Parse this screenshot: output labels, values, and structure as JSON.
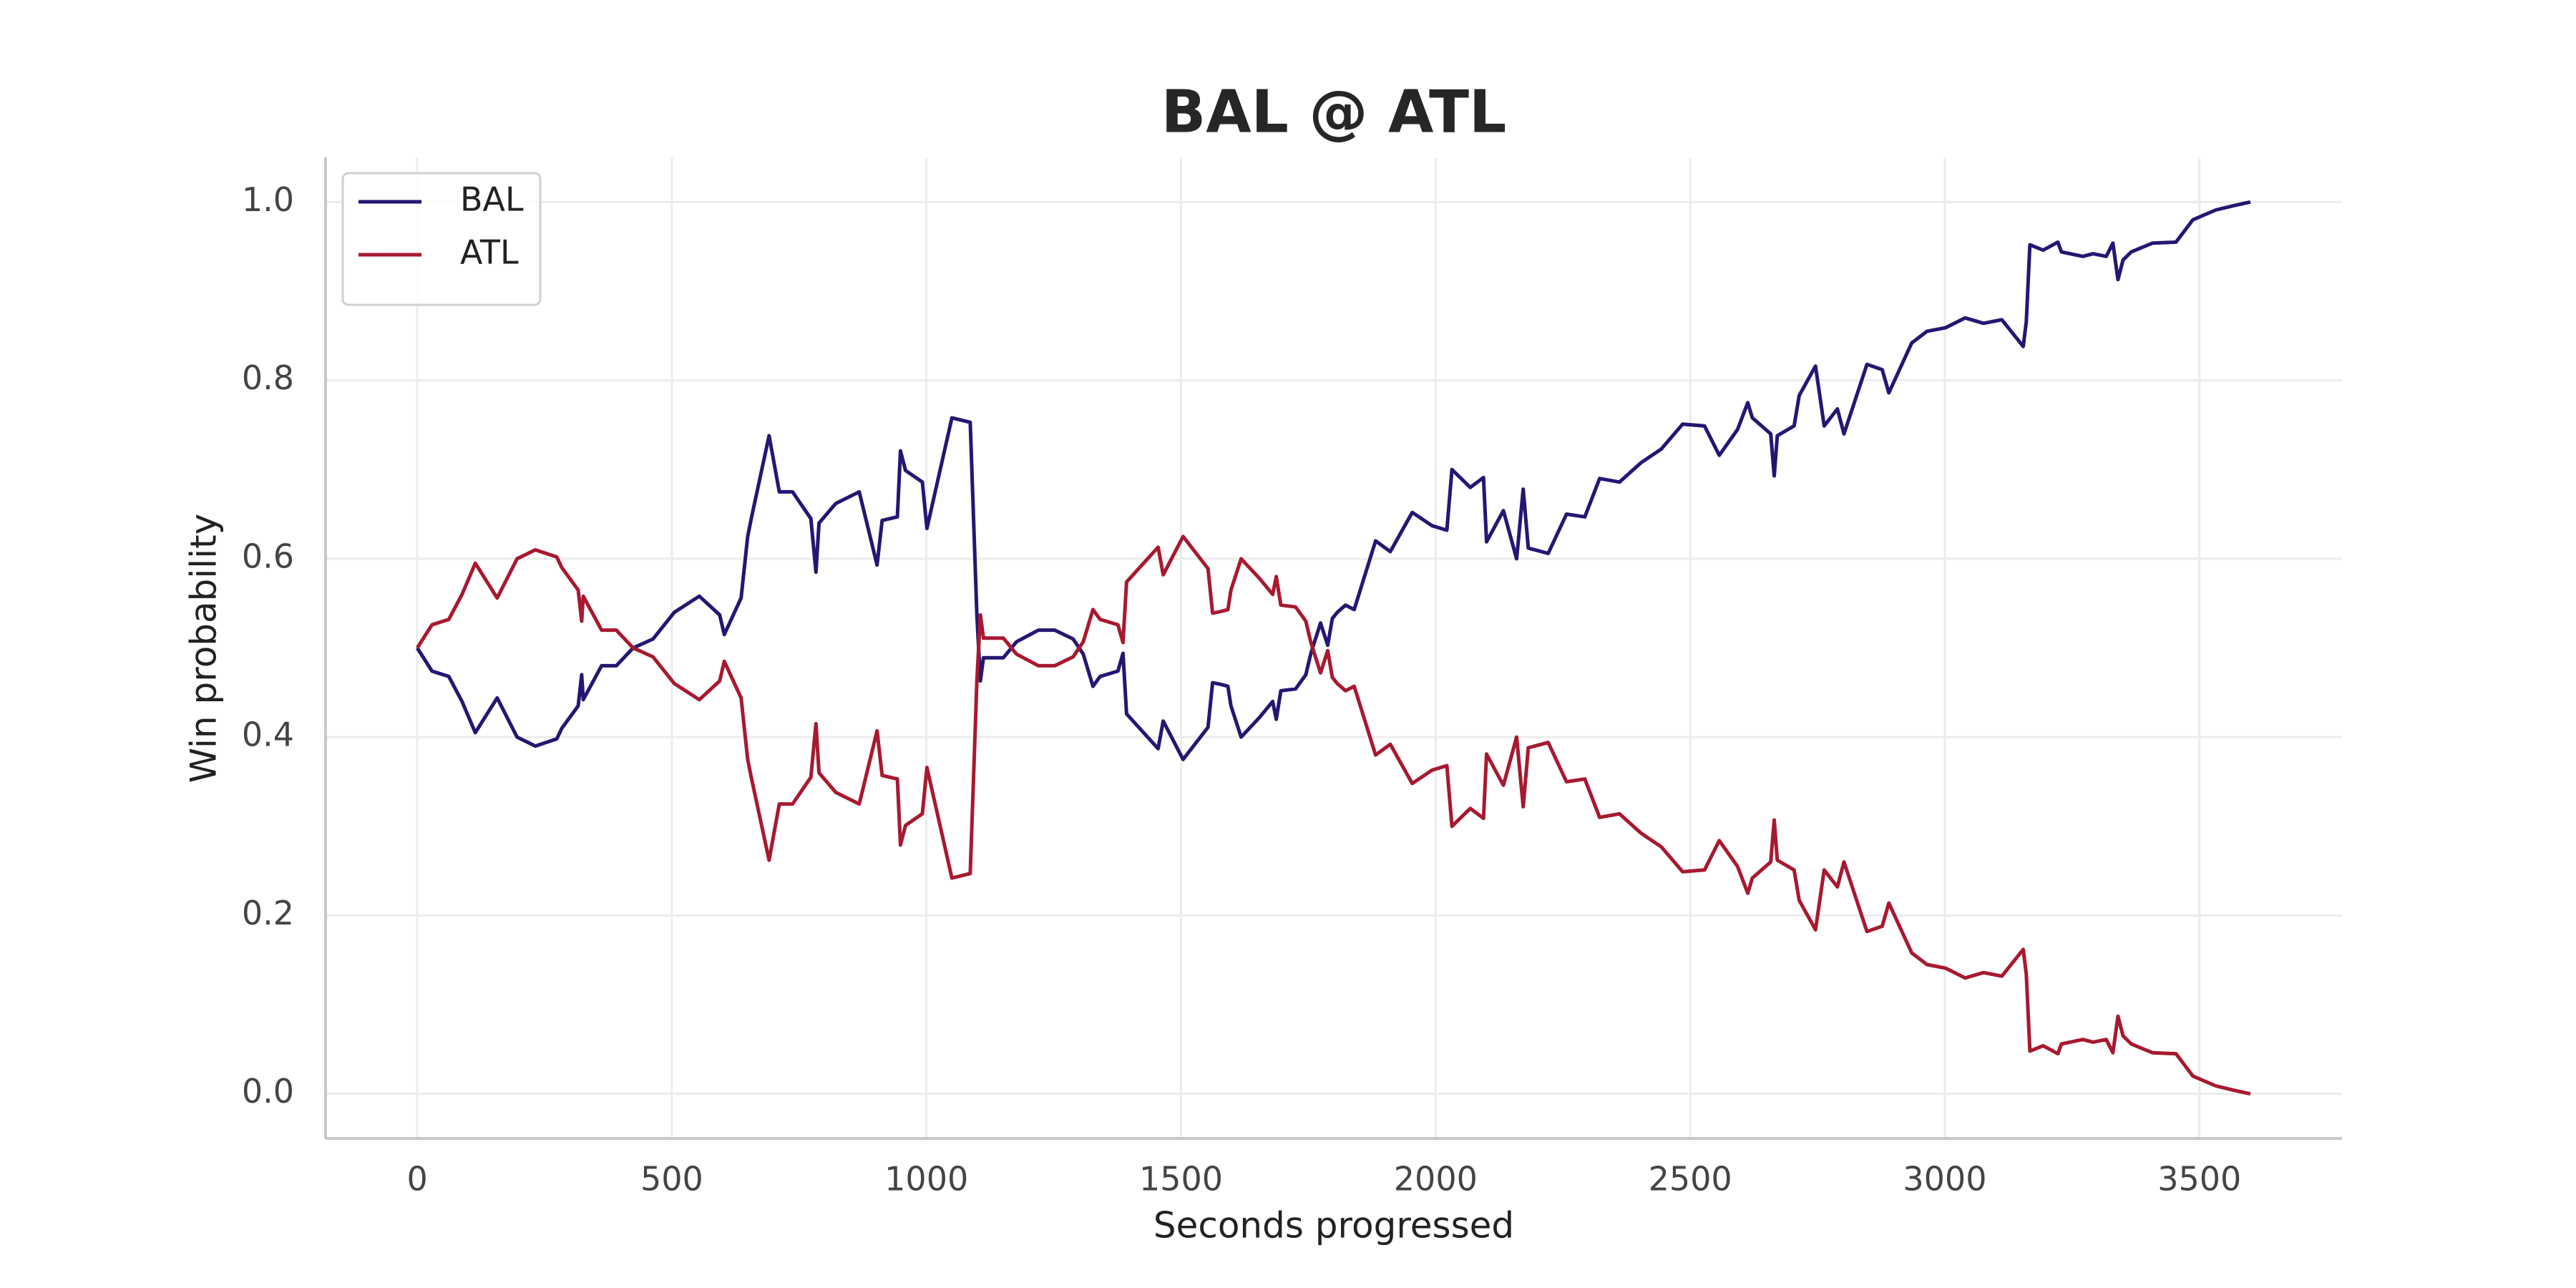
{
  "chart_data": {
    "type": "line",
    "title": "BAL @ ATL",
    "xlabel": "Seconds progressed",
    "ylabel": "Win probability",
    "x": [
      0,
      29,
      62,
      88,
      114,
      157,
      196,
      232,
      274,
      284,
      316,
      323,
      326,
      362,
      391,
      424,
      463,
      505,
      554,
      594,
      603,
      636,
      649,
      656,
      691,
      711,
      737,
      773,
      783,
      789,
      822,
      868,
      903,
      913,
      943,
      949,
      959,
      992,
      1001,
      1050,
      1086,
      1099,
      1106,
      1112,
      1151,
      1177,
      1220,
      1252,
      1288,
      1308,
      1327,
      1341,
      1376,
      1386,
      1393,
      1455,
      1465,
      1504,
      1553,
      1562,
      1579,
      1592,
      1598,
      1618,
      1654,
      1680,
      1687,
      1696,
      1725,
      1745,
      1755,
      1774,
      1788,
      1797,
      1807,
      1823,
      1840,
      1882,
      1911,
      1954,
      1993,
      2022,
      2032,
      2068,
      2094,
      2100,
      2133,
      2159,
      2172,
      2182,
      2221,
      2257,
      2293,
      2322,
      2361,
      2404,
      2443,
      2485,
      2528,
      2557,
      2593,
      2613,
      2622,
      2658,
      2665,
      2671,
      2704,
      2714,
      2746,
      2763,
      2789,
      2802,
      2847,
      2877,
      2890,
      2935,
      2965,
      3001,
      3040,
      3076,
      3112,
      3154,
      3160,
      3167,
      3193,
      3222,
      3229,
      3271,
      3291,
      3317,
      3330,
      3340,
      3350,
      3366,
      3408,
      3454,
      3487,
      3532,
      3568,
      3600
    ],
    "series": [
      {
        "name": "BAL",
        "color": "#241773",
        "values": [
          0.5,
          0.474,
          0.468,
          0.44,
          0.405,
          0.444,
          0.4,
          0.39,
          0.398,
          0.41,
          0.435,
          0.47,
          0.442,
          0.48,
          0.48,
          0.5,
          0.51,
          0.54,
          0.558,
          0.537,
          0.515,
          0.556,
          0.625,
          0.645,
          0.738,
          0.675,
          0.675,
          0.645,
          0.585,
          0.64,
          0.662,
          0.675,
          0.593,
          0.643,
          0.647,
          0.721,
          0.699,
          0.686,
          0.634,
          0.758,
          0.753,
          0.537,
          0.463,
          0.489,
          0.489,
          0.507,
          0.52,
          0.52,
          0.51,
          0.493,
          0.457,
          0.468,
          0.474,
          0.494,
          0.426,
          0.387,
          0.418,
          0.375,
          0.411,
          0.461,
          0.459,
          0.457,
          0.435,
          0.4,
          0.422,
          0.44,
          0.42,
          0.452,
          0.454,
          0.47,
          0.494,
          0.528,
          0.503,
          0.533,
          0.54,
          0.548,
          0.543,
          0.62,
          0.608,
          0.652,
          0.637,
          0.632,
          0.7,
          0.68,
          0.691,
          0.619,
          0.654,
          0.6,
          0.678,
          0.612,
          0.606,
          0.65,
          0.647,
          0.69,
          0.686,
          0.708,
          0.723,
          0.751,
          0.749,
          0.716,
          0.745,
          0.775,
          0.758,
          0.74,
          0.693,
          0.738,
          0.749,
          0.783,
          0.816,
          0.749,
          0.768,
          0.74,
          0.818,
          0.812,
          0.786,
          0.842,
          0.855,
          0.859,
          0.87,
          0.864,
          0.868,
          0.838,
          0.866,
          0.952,
          0.946,
          0.955,
          0.944,
          0.939,
          0.942,
          0.939,
          0.954,
          0.913,
          0.935,
          0.944,
          0.954,
          0.955,
          0.98,
          0.991,
          0.996,
          1.0
        ]
      },
      {
        "name": "ATL",
        "color": "#a71930",
        "values": [
          0.5,
          0.526,
          0.532,
          0.56,
          0.595,
          0.556,
          0.6,
          0.61,
          0.602,
          0.59,
          0.565,
          0.53,
          0.558,
          0.52,
          0.52,
          0.5,
          0.49,
          0.46,
          0.442,
          0.463,
          0.485,
          0.444,
          0.375,
          0.355,
          0.262,
          0.325,
          0.325,
          0.355,
          0.415,
          0.36,
          0.338,
          0.325,
          0.407,
          0.357,
          0.353,
          0.279,
          0.301,
          0.314,
          0.366,
          0.242,
          0.247,
          0.463,
          0.537,
          0.511,
          0.511,
          0.493,
          0.48,
          0.48,
          0.49,
          0.507,
          0.543,
          0.532,
          0.526,
          0.506,
          0.574,
          0.613,
          0.582,
          0.625,
          0.589,
          0.539,
          0.541,
          0.543,
          0.565,
          0.6,
          0.578,
          0.56,
          0.58,
          0.548,
          0.546,
          0.53,
          0.506,
          0.472,
          0.497,
          0.467,
          0.46,
          0.452,
          0.457,
          0.38,
          0.392,
          0.348,
          0.363,
          0.368,
          0.3,
          0.32,
          0.309,
          0.381,
          0.346,
          0.4,
          0.322,
          0.388,
          0.394,
          0.35,
          0.353,
          0.31,
          0.314,
          0.292,
          0.277,
          0.249,
          0.251,
          0.284,
          0.255,
          0.225,
          0.242,
          0.26,
          0.307,
          0.262,
          0.251,
          0.217,
          0.184,
          0.251,
          0.232,
          0.26,
          0.182,
          0.188,
          0.214,
          0.158,
          0.145,
          0.141,
          0.13,
          0.136,
          0.132,
          0.162,
          0.134,
          0.048,
          0.054,
          0.045,
          0.056,
          0.061,
          0.058,
          0.061,
          0.046,
          0.087,
          0.065,
          0.056,
          0.046,
          0.045,
          0.02,
          0.009,
          0.004,
          0.0
        ]
      }
    ],
    "xlim": [
      -180,
      3780
    ],
    "xticks": [
      0,
      500,
      1000,
      1500,
      2000,
      2500,
      3000,
      3500
    ],
    "ylim": [
      -0.05,
      1.05
    ],
    "yticks": [
      {
        "value": 0,
        "label": "0.0"
      },
      0.2,
      0.4,
      0.6,
      0.8,
      {
        "value": 1,
        "label": "1.0"
      }
    ],
    "grid": true,
    "legend": "upper left"
  }
}
